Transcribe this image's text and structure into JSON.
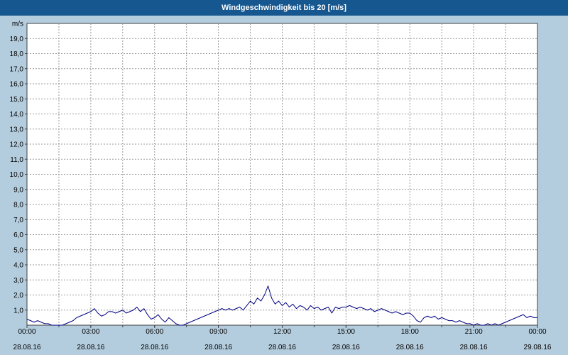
{
  "chart_data": {
    "type": "line",
    "title": "Windgeschwindigkeit bis 20 [m/s]",
    "unit_label": "m/s",
    "ylim": [
      0,
      20
    ],
    "ytick_step": 1,
    "ytick_labels": [
      "19,0",
      "18,0",
      "17,0",
      "16,0",
      "15,0",
      "14,0",
      "13,0",
      "12,0",
      "11,0",
      "10,0",
      "9,0",
      "8,0",
      "7,0",
      "6,0",
      "5,0",
      "4,0",
      "3,0",
      "2,0",
      "1,0"
    ],
    "grid": "dashed",
    "x_hours_range": [
      0,
      24
    ],
    "x_minor_grid_hours": 1.5,
    "xticks": [
      {
        "time": "00:00",
        "date": "28.08.16"
      },
      {
        "time": "03:00",
        "date": "28.08.16"
      },
      {
        "time": "06:00",
        "date": "28.08.16"
      },
      {
        "time": "09:00",
        "date": "28.08.16"
      },
      {
        "time": "12:00",
        "date": "28.08.16"
      },
      {
        "time": "15:00",
        "date": "28.08.16"
      },
      {
        "time": "18:00",
        "date": "28.08.16"
      },
      {
        "time": "21:00",
        "date": "28.08.16"
      },
      {
        "time": "00:00",
        "date": "29.08.16"
      }
    ],
    "series": [
      {
        "name": "Windgeschwindigkeit",
        "interval_minutes": 10,
        "values": [
          0.4,
          0.3,
          0.2,
          0.3,
          0.2,
          0.1,
          0.1,
          0.0,
          0.0,
          0.0,
          0.0,
          0.1,
          0.2,
          0.3,
          0.5,
          0.6,
          0.7,
          0.8,
          0.9,
          1.1,
          0.8,
          0.6,
          0.7,
          0.9,
          0.9,
          0.8,
          0.9,
          1.0,
          0.8,
          0.9,
          1.0,
          1.2,
          0.9,
          1.1,
          0.7,
          0.4,
          0.5,
          0.7,
          0.4,
          0.2,
          0.5,
          0.3,
          0.1,
          0.0,
          0.0,
          0.1,
          0.2,
          0.3,
          0.4,
          0.5,
          0.6,
          0.7,
          0.8,
          0.9,
          1.0,
          1.1,
          1.0,
          1.1,
          1.0,
          1.1,
          1.2,
          1.0,
          1.3,
          1.6,
          1.4,
          1.8,
          1.6,
          2.0,
          2.6,
          1.8,
          1.4,
          1.6,
          1.3,
          1.5,
          1.2,
          1.4,
          1.1,
          1.3,
          1.2,
          1.0,
          1.3,
          1.1,
          1.2,
          1.0,
          1.1,
          1.2,
          0.8,
          1.2,
          1.1,
          1.2,
          1.2,
          1.3,
          1.2,
          1.1,
          1.2,
          1.1,
          1.0,
          1.1,
          0.9,
          1.0,
          1.1,
          1.0,
          0.9,
          0.8,
          0.9,
          0.8,
          0.7,
          0.8,
          0.8,
          0.6,
          0.3,
          0.2,
          0.5,
          0.6,
          0.5,
          0.6,
          0.4,
          0.5,
          0.4,
          0.3,
          0.3,
          0.2,
          0.3,
          0.2,
          0.1,
          0.1,
          0.0,
          0.1,
          0.0,
          0.0,
          0.1,
          0.0,
          0.1,
          0.0,
          0.1,
          0.2,
          0.3,
          0.4,
          0.5,
          0.6,
          0.7,
          0.5,
          0.6,
          0.5,
          0.5
        ]
      }
    ],
    "colors": {
      "background": "#b4cdde",
      "title_bar": "#16578f",
      "title_text": "#ffffff",
      "plot_bg": "#ffffff",
      "grid": "#9a9a9a",
      "axis": "#404040",
      "line": "#000080",
      "text": "#000000"
    }
  }
}
